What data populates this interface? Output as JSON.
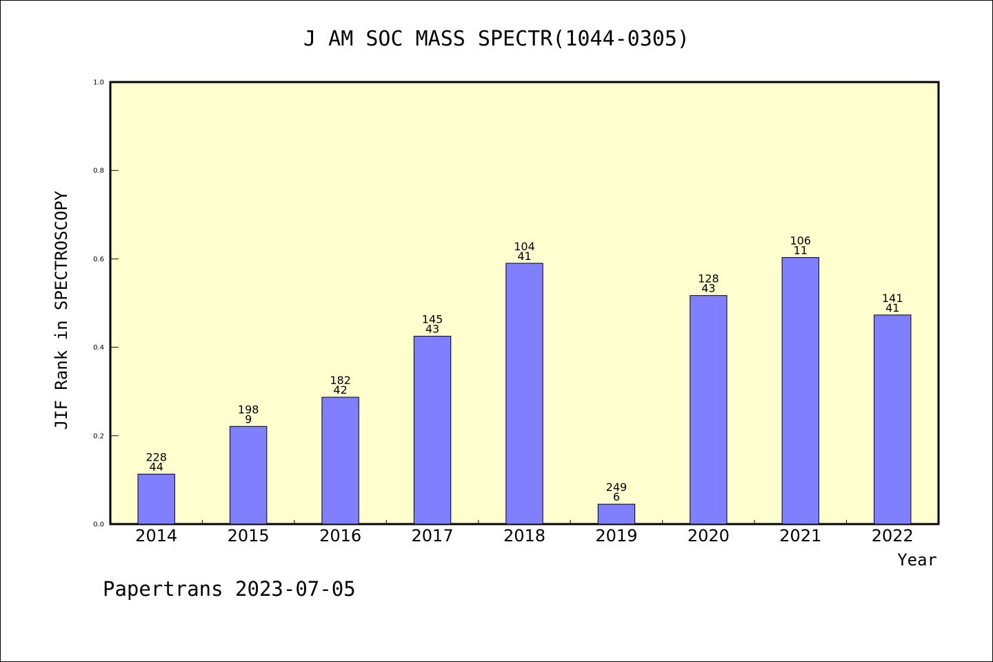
{
  "chart_data": {
    "type": "bar",
    "title": "J AM SOC MASS SPECTR(1044-0305)",
    "xlabel": "Year",
    "ylabel": "JIF Rank in SPECTROSCOPY",
    "ylim": [
      0,
      1.0
    ],
    "yticks": [
      "0.0",
      "0.2",
      "0.4",
      "0.6",
      "0.8",
      "1.0"
    ],
    "categories": [
      "2014",
      "2015",
      "2016",
      "2017",
      "2018",
      "2019",
      "2020",
      "2021",
      "2022"
    ],
    "values": [
      0.113,
      0.221,
      0.287,
      0.425,
      0.59,
      0.045,
      0.517,
      0.603,
      0.473
    ],
    "labels_top": [
      "228",
      "198",
      "182",
      "145",
      "104",
      "249",
      "128",
      "106",
      "141"
    ],
    "labels_bottom": [
      "44",
      "9",
      "42",
      "43",
      "41",
      "6",
      "43",
      "11",
      "41"
    ],
    "grid": false,
    "colors": {
      "plot_background": "#ffffd0",
      "bar_fill": "#8080ff",
      "bar_stroke": "#000000",
      "axis": "#000000"
    }
  },
  "footer": "Papertrans 2023-07-05"
}
